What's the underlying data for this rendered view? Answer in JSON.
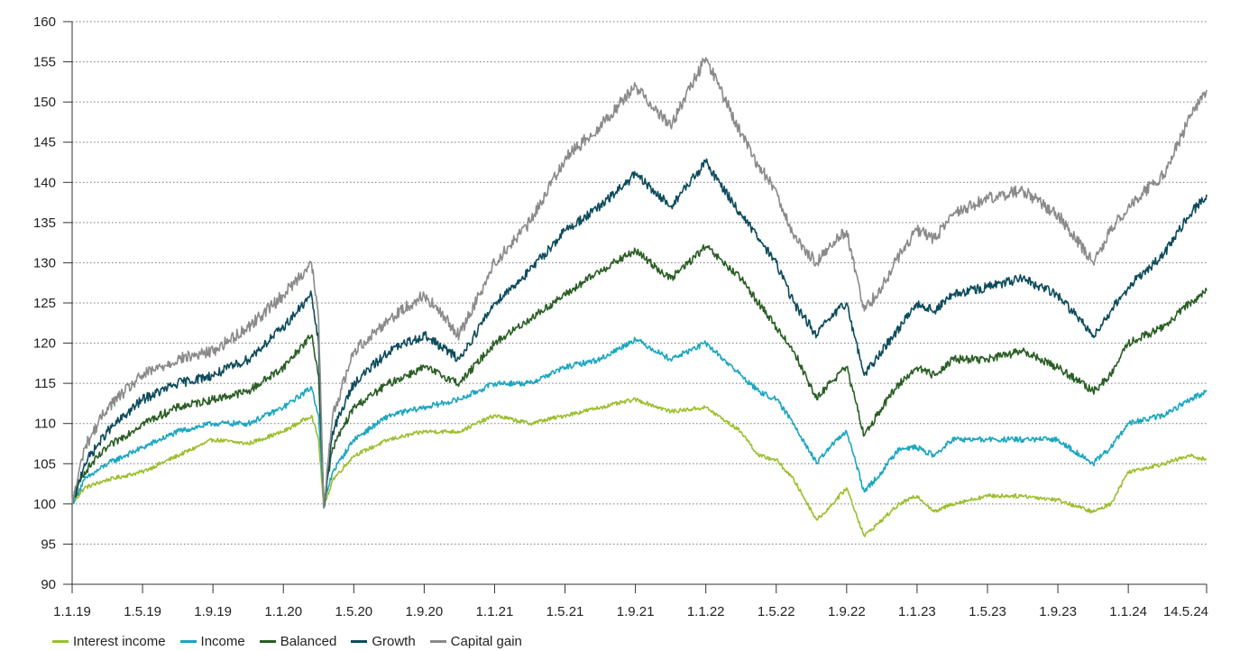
{
  "chart_data": {
    "type": "line",
    "y_ticks": [
      "160",
      "155",
      "150",
      "145",
      "140",
      "135",
      "130",
      "125",
      "120",
      "115",
      "110",
      "105",
      "100",
      "95",
      "90"
    ],
    "x_ticks": [
      "1.1.19",
      "1.5.19",
      "1.9.19",
      "1.1.20",
      "1.5.20",
      "1.9.20",
      "1.1.21",
      "1.5.21",
      "1.9.21",
      "1.1.22",
      "1.5.22",
      "1.9.22",
      "1.1.23",
      "1.5.23",
      "1.9.23",
      "1.1.24",
      "14.5.24"
    ],
    "x_tick_months": [
      0,
      4,
      8,
      12,
      16,
      20,
      24,
      28,
      32,
      36,
      40,
      44,
      48,
      52,
      56,
      60,
      64.45
    ],
    "ylim": [
      90,
      160
    ],
    "xlim_months": [
      0,
      64.45
    ],
    "grid": "horizontal-dotted",
    "legend_position": "bottom-left",
    "series": [
      {
        "name": "Interest income",
        "color": "#9bbf2e",
        "points": [
          [
            0,
            100
          ],
          [
            0.7,
            102
          ],
          [
            2,
            103
          ],
          [
            4,
            104
          ],
          [
            6,
            106
          ],
          [
            8,
            108
          ],
          [
            10,
            107.5
          ],
          [
            12,
            109
          ],
          [
            13.6,
            111
          ],
          [
            14,
            108
          ],
          [
            14.3,
            99.5
          ],
          [
            14.8,
            103
          ],
          [
            16,
            106
          ],
          [
            18,
            108
          ],
          [
            20,
            109
          ],
          [
            22,
            109
          ],
          [
            24,
            111
          ],
          [
            26,
            110
          ],
          [
            28,
            111
          ],
          [
            30,
            112
          ],
          [
            32,
            113
          ],
          [
            34,
            111.5
          ],
          [
            36,
            112
          ],
          [
            38,
            109
          ],
          [
            39,
            106
          ],
          [
            40,
            105.5
          ],
          [
            41,
            103
          ],
          [
            42.3,
            98
          ],
          [
            43,
            99.5
          ],
          [
            44,
            102
          ],
          [
            45,
            96
          ],
          [
            46,
            98
          ],
          [
            47,
            100
          ],
          [
            48,
            101
          ],
          [
            49,
            99
          ],
          [
            50,
            100
          ],
          [
            52,
            101
          ],
          [
            54,
            101
          ],
          [
            56,
            100.5
          ],
          [
            58,
            99
          ],
          [
            59,
            100
          ],
          [
            60,
            104
          ],
          [
            62,
            105
          ],
          [
            63.5,
            106
          ],
          [
            64.45,
            105.5
          ]
        ]
      },
      {
        "name": "Income",
        "color": "#1ba6c0",
        "points": [
          [
            0,
            100
          ],
          [
            0.7,
            103
          ],
          [
            2,
            105
          ],
          [
            4,
            107
          ],
          [
            6,
            109
          ],
          [
            8,
            110
          ],
          [
            10,
            110
          ],
          [
            12,
            112
          ],
          [
            13.6,
            114.5
          ],
          [
            14,
            111
          ],
          [
            14.3,
            100
          ],
          [
            14.8,
            104
          ],
          [
            16,
            108
          ],
          [
            18,
            111
          ],
          [
            20,
            112
          ],
          [
            22,
            113
          ],
          [
            24,
            115
          ],
          [
            26,
            115
          ],
          [
            28,
            117
          ],
          [
            30,
            118
          ],
          [
            32,
            120.5
          ],
          [
            34,
            118
          ],
          [
            36,
            120
          ],
          [
            38,
            116
          ],
          [
            39,
            114
          ],
          [
            40,
            113
          ],
          [
            41,
            110
          ],
          [
            42.3,
            105
          ],
          [
            43,
            107
          ],
          [
            44,
            109
          ],
          [
            45,
            101.5
          ],
          [
            46,
            104
          ],
          [
            47,
            107
          ],
          [
            48,
            107
          ],
          [
            49,
            106
          ],
          [
            50,
            108
          ],
          [
            52,
            108
          ],
          [
            54,
            108
          ],
          [
            56,
            108
          ],
          [
            58,
            105
          ],
          [
            59,
            107
          ],
          [
            60,
            110
          ],
          [
            62,
            111
          ],
          [
            63.5,
            113
          ],
          [
            64.45,
            114
          ]
        ]
      },
      {
        "name": "Balanced",
        "color": "#2a5e24",
        "points": [
          [
            0,
            100
          ],
          [
            0.7,
            104
          ],
          [
            2,
            107
          ],
          [
            4,
            110
          ],
          [
            6,
            112
          ],
          [
            8,
            113
          ],
          [
            10,
            114
          ],
          [
            12,
            117
          ],
          [
            13.6,
            121
          ],
          [
            14,
            116
          ],
          [
            14.3,
            100
          ],
          [
            14.8,
            107
          ],
          [
            16,
            112
          ],
          [
            18,
            115
          ],
          [
            20,
            117
          ],
          [
            22,
            115
          ],
          [
            24,
            120
          ],
          [
            26,
            123
          ],
          [
            28,
            126
          ],
          [
            30,
            129
          ],
          [
            32,
            131.5
          ],
          [
            34,
            128
          ],
          [
            36,
            132
          ],
          [
            38,
            128
          ],
          [
            39,
            125
          ],
          [
            40,
            122
          ],
          [
            41,
            119
          ],
          [
            42.3,
            113
          ],
          [
            43,
            115
          ],
          [
            44,
            117
          ],
          [
            45,
            108.5
          ],
          [
            46,
            112
          ],
          [
            47,
            115
          ],
          [
            48,
            117
          ],
          [
            49,
            116
          ],
          [
            50,
            118
          ],
          [
            52,
            118
          ],
          [
            54,
            119
          ],
          [
            56,
            117
          ],
          [
            58,
            114
          ],
          [
            59,
            116
          ],
          [
            60,
            120
          ],
          [
            62,
            122
          ],
          [
            63.5,
            125
          ],
          [
            64.45,
            126.5
          ]
        ]
      },
      {
        "name": "Growth",
        "color": "#0d4c5c",
        "points": [
          [
            0,
            100
          ],
          [
            0.7,
            105
          ],
          [
            2,
            109
          ],
          [
            4,
            113
          ],
          [
            6,
            115
          ],
          [
            8,
            116
          ],
          [
            10,
            118
          ],
          [
            12,
            122
          ],
          [
            13.6,
            126
          ],
          [
            14,
            120
          ],
          [
            14.3,
            99.5
          ],
          [
            14.8,
            109
          ],
          [
            16,
            115
          ],
          [
            18,
            119
          ],
          [
            20,
            121
          ],
          [
            22,
            118
          ],
          [
            24,
            125
          ],
          [
            26,
            129
          ],
          [
            28,
            134
          ],
          [
            30,
            137
          ],
          [
            32,
            141
          ],
          [
            34,
            137
          ],
          [
            36,
            142.5
          ],
          [
            38,
            136
          ],
          [
            39,
            133
          ],
          [
            40,
            130
          ],
          [
            41,
            125
          ],
          [
            42.3,
            121
          ],
          [
            43,
            123
          ],
          [
            44,
            125
          ],
          [
            45,
            116
          ],
          [
            46,
            119
          ],
          [
            47,
            122
          ],
          [
            48,
            125
          ],
          [
            49,
            124
          ],
          [
            50,
            126
          ],
          [
            52,
            127
          ],
          [
            54,
            128
          ],
          [
            56,
            126
          ],
          [
            58,
            121
          ],
          [
            59,
            124
          ],
          [
            60,
            127
          ],
          [
            62,
            131
          ],
          [
            63.5,
            136
          ],
          [
            64.45,
            138.5
          ]
        ]
      },
      {
        "name": "Capital gain",
        "color": "#8a8a8a",
        "points": [
          [
            0,
            100
          ],
          [
            0.7,
            107
          ],
          [
            2,
            112
          ],
          [
            4,
            116
          ],
          [
            6,
            118
          ],
          [
            8,
            119
          ],
          [
            10,
            122
          ],
          [
            12,
            126
          ],
          [
            13.6,
            130
          ],
          [
            14,
            123
          ],
          [
            14.3,
            99.5
          ],
          [
            14.8,
            111
          ],
          [
            16,
            119
          ],
          [
            18,
            123
          ],
          [
            20,
            126
          ],
          [
            22,
            121
          ],
          [
            24,
            130
          ],
          [
            26,
            135
          ],
          [
            28,
            143
          ],
          [
            30,
            147
          ],
          [
            32,
            152
          ],
          [
            34,
            147
          ],
          [
            36,
            155.5
          ],
          [
            38,
            146
          ],
          [
            39,
            142
          ],
          [
            40,
            139
          ],
          [
            41,
            133
          ],
          [
            42.3,
            130
          ],
          [
            43,
            132
          ],
          [
            44,
            134
          ],
          [
            45,
            124
          ],
          [
            46,
            127
          ],
          [
            47,
            131
          ],
          [
            48,
            134
          ],
          [
            49,
            133
          ],
          [
            50,
            136
          ],
          [
            52,
            138
          ],
          [
            54,
            139
          ],
          [
            56,
            136
          ],
          [
            58,
            130
          ],
          [
            59,
            134
          ],
          [
            60,
            137
          ],
          [
            62,
            141
          ],
          [
            63.5,
            148
          ],
          [
            64.45,
            151.5
          ]
        ]
      }
    ]
  }
}
